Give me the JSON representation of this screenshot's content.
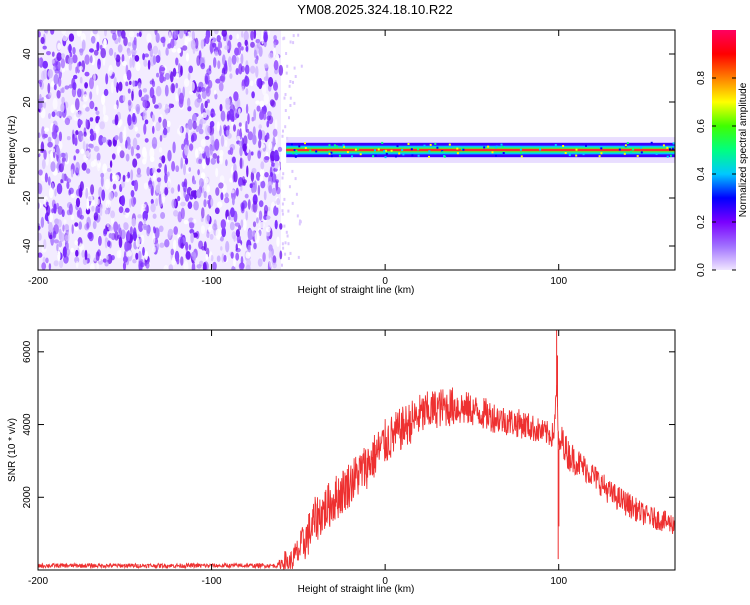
{
  "title": "YM08.2025.324.18.10.R22",
  "chart_data": [
    {
      "type": "heatmap",
      "name": "spectrogram",
      "xlabel": "Height of straight line (km)",
      "ylabel": "Frequency (Hz)",
      "xlim": [
        -200,
        167
      ],
      "ylim": [
        -50,
        50
      ],
      "xticks": [
        -200,
        -100,
        0,
        100
      ],
      "xtick_labels": [
        "-200",
        "-100",
        "0",
        "100"
      ],
      "yticks": [
        -40,
        -20,
        0,
        20,
        40
      ],
      "ytick_labels": [
        "-40",
        "-20",
        "0",
        "20",
        "40"
      ],
      "noise_region_x": [
        -200,
        -60
      ],
      "signal_band": {
        "x_start": -57,
        "x_end": 167,
        "frequency_hz": 0,
        "half_width_hz": 3
      },
      "colorbar": {
        "label": "Normalized spectral amplitude",
        "range": [
          0,
          1
        ],
        "ticks": [
          0.0,
          0.2,
          0.4,
          0.6,
          0.8
        ],
        "tick_labels": [
          "0.0",
          "0.2",
          "0.4",
          "0.6",
          "0.8"
        ],
        "colors": [
          "#f0e6ff",
          "#a070ff",
          "#7a00ff",
          "#0000ff",
          "#00c8ff",
          "#00ff80",
          "#40ff00",
          "#ffff00",
          "#ff8000",
          "#ff0000",
          "#ff0060"
        ]
      }
    },
    {
      "type": "line",
      "name": "snr",
      "xlabel": "Height of straight line (km)",
      "ylabel": "SNR (10 * v/v)",
      "xlim": [
        -200,
        167
      ],
      "ylim": [
        0,
        6600
      ],
      "xticks": [
        -200,
        -100,
        0,
        100
      ],
      "xtick_labels": [
        "-200",
        "-100",
        "0",
        "100"
      ],
      "yticks": [
        2000,
        4000,
        6000
      ],
      "ytick_labels": [
        "2000",
        "4000",
        "6000"
      ],
      "color": "#ee3030",
      "envelope": {
        "x": [
          -200,
          -150,
          -100,
          -62,
          -58,
          -55,
          -50,
          -45,
          -40,
          -30,
          -20,
          -10,
          0,
          10,
          20,
          30,
          40,
          50,
          60,
          70,
          80,
          90,
          97,
          99,
          100,
          102,
          105,
          110,
          120,
          130,
          140,
          150,
          160,
          167
        ],
        "mean": [
          120,
          120,
          120,
          120,
          250,
          180,
          500,
          900,
          1400,
          1900,
          2400,
          2900,
          3500,
          3900,
          4250,
          4450,
          4500,
          4400,
          4250,
          4100,
          4000,
          3800,
          3700,
          5000,
          3300,
          3600,
          3200,
          3000,
          2600,
          2100,
          1800,
          1500,
          1350,
          1250
        ],
        "noise": [
          60,
          60,
          60,
          60,
          300,
          300,
          450,
          600,
          650,
          650,
          650,
          650,
          650,
          600,
          600,
          550,
          550,
          450,
          450,
          400,
          400,
          350,
          350,
          300,
          300,
          400,
          450,
          400,
          350,
          350,
          350,
          300,
          300,
          300
        ]
      },
      "spikes": [
        {
          "x": 98.8,
          "y": 6600
        },
        {
          "x": 99.3,
          "y": 5900
        },
        {
          "x": 100.1,
          "y": 1200
        },
        {
          "x": 99.7,
          "y": 300
        }
      ]
    }
  ]
}
